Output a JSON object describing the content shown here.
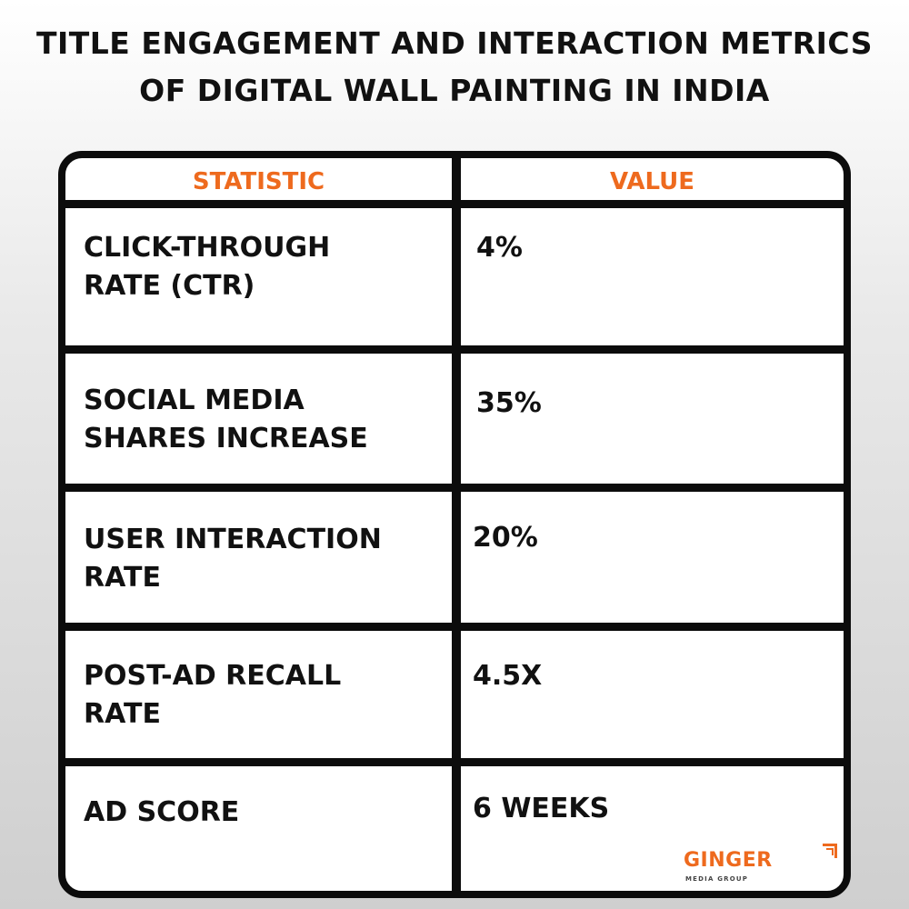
{
  "title": {
    "line1": "TITLE ENGAGEMENT AND INTERACTION METRICS",
    "line2": "OF DIGITAL WALL PAINTING IN INDIA"
  },
  "table": {
    "headers": {
      "statistic": "STATISTIC",
      "value": "VALUE"
    },
    "rows": [
      {
        "statistic": "CLICK-THROUGH\nRATE (CTR)",
        "value": "4%"
      },
      {
        "statistic": "SOCIAL MEDIA\nSHARES INCREASE",
        "value": "35%"
      },
      {
        "statistic": "USER INTERACTION\nRATE",
        "value": "20%"
      },
      {
        "statistic": "POST-AD RECALL\nRATE",
        "value": "4.5X"
      },
      {
        "statistic": "AD SCORE",
        "value": "6 WEEKS"
      }
    ]
  },
  "logo": {
    "name": "GINGER",
    "tagline": "MEDIA GROUP"
  },
  "colors": {
    "accent": "#ee6a1e",
    "border": "#0c0c0c"
  }
}
